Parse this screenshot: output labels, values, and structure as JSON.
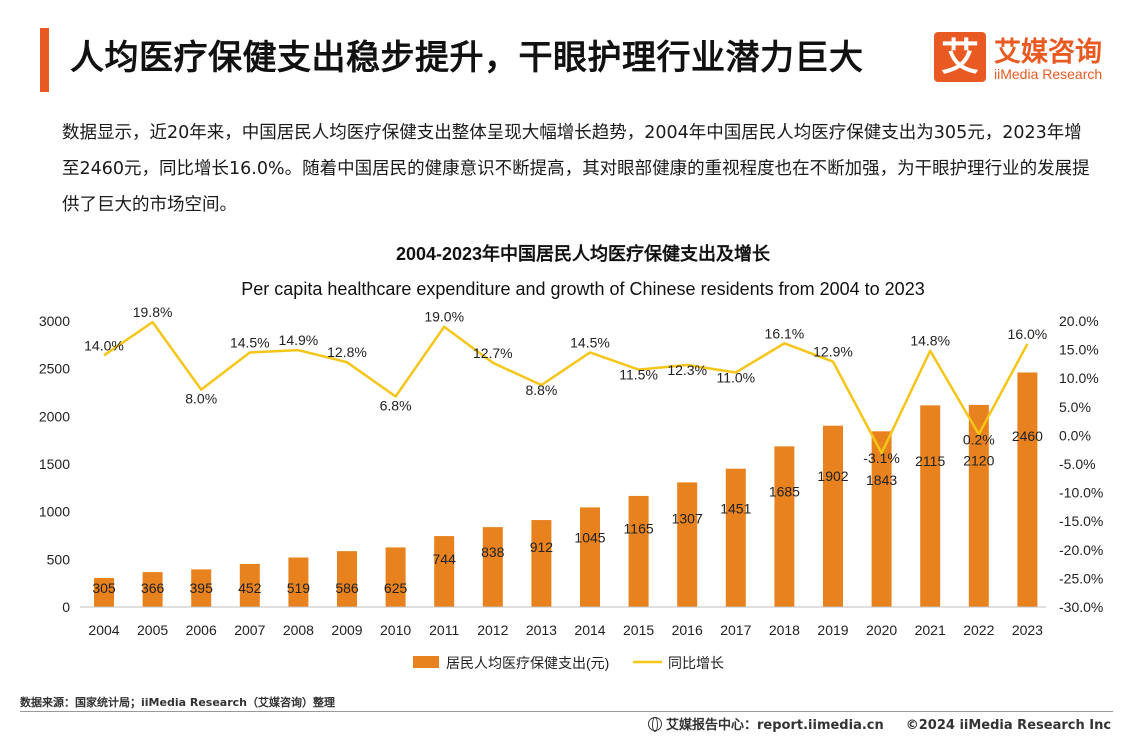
{
  "header": {
    "title": "人均医疗保健支出稳步提升，干眼护理行业潜力巨大",
    "accent_color": "#e85a22"
  },
  "logo": {
    "mark": "艾",
    "name_cn": "艾媒咨询",
    "name_en": "iiMedia Research"
  },
  "intro": {
    "paragraph": "数据显示，近20年来，中国居民人均医疗保健支出整体呈现大幅增长趋势，2004年中国居民人均医疗保健支出为305元，2023年增至2460元，同比增长16.0%。随着中国居民的健康意识不断提高，其对眼部健康的重视程度也在不断加强，为干眼护理行业的发展提供了巨大的市场空间。"
  },
  "chart_data": {
    "type": "bar",
    "title": "2004-2023年中国居民人均医疗保健支出及增长",
    "subtitle": "Per capita healthcare expenditure and growth of Chinese residents from 2004 to 2023",
    "categories": [
      "2004",
      "2005",
      "2006",
      "2007",
      "2008",
      "2009",
      "2010",
      "2011",
      "2012",
      "2013",
      "2014",
      "2015",
      "2016",
      "2017",
      "2018",
      "2019",
      "2020",
      "2021",
      "2022",
      "2023"
    ],
    "series": [
      {
        "name": "居民人均医疗保健支出(元)",
        "type": "bar",
        "axis": "left",
        "color": "#e8821e",
        "values": [
          305,
          366,
          395,
          452,
          519,
          586,
          625,
          744,
          838,
          912,
          1045,
          1165,
          1307,
          1451,
          1685,
          1902,
          1843,
          2115,
          2120,
          2460
        ],
        "labels": [
          "305",
          "366",
          "395",
          "452",
          "519",
          "586",
          "625",
          "744",
          "838",
          "912",
          "1045",
          "1165",
          "1307",
          "1451",
          "1685",
          "1902",
          "1843",
          "2115",
          "2120",
          "2460"
        ]
      },
      {
        "name": "同比增长",
        "type": "line",
        "axis": "right",
        "color": "#f5c518",
        "values": [
          14.0,
          19.8,
          8.0,
          14.5,
          14.9,
          12.8,
          6.8,
          19.0,
          12.7,
          8.8,
          14.5,
          11.5,
          12.3,
          11.0,
          16.1,
          12.9,
          -3.1,
          14.8,
          0.2,
          16.0
        ],
        "labels": [
          "14.0%",
          "19.8%",
          "8.0%",
          "14.5%",
          "14.9%",
          "12.8%",
          "6.8%",
          "19.0%",
          "12.7%",
          "8.8%",
          "14.5%",
          "11.5%",
          "12.3%",
          "11.0%",
          "16.1%",
          "12.9%",
          "-3.1%",
          "14.8%",
          "0.2%",
          "16.0%"
        ]
      }
    ],
    "ylim_left": [
      0,
      3000
    ],
    "yticks_left": [
      "0",
      "500",
      "1000",
      "1500",
      "2000",
      "2500",
      "3000"
    ],
    "ylim_right": [
      -30,
      20
    ],
    "yticks_right": [
      "-30.0%",
      "-25.0%",
      "-20.0%",
      "-15.0%",
      "-10.0%",
      "-5.0%",
      "0.0%",
      "5.0%",
      "10.0%",
      "15.0%",
      "20.0%"
    ],
    "grid": false,
    "legend_position": "bottom"
  },
  "footer": {
    "source": "数据来源：国家统计局；iiMedia Research（艾媒咨询）整理",
    "site": "艾媒报告中心：report.iimedia.cn",
    "copyright": "©2024  iiMedia Research  Inc"
  }
}
